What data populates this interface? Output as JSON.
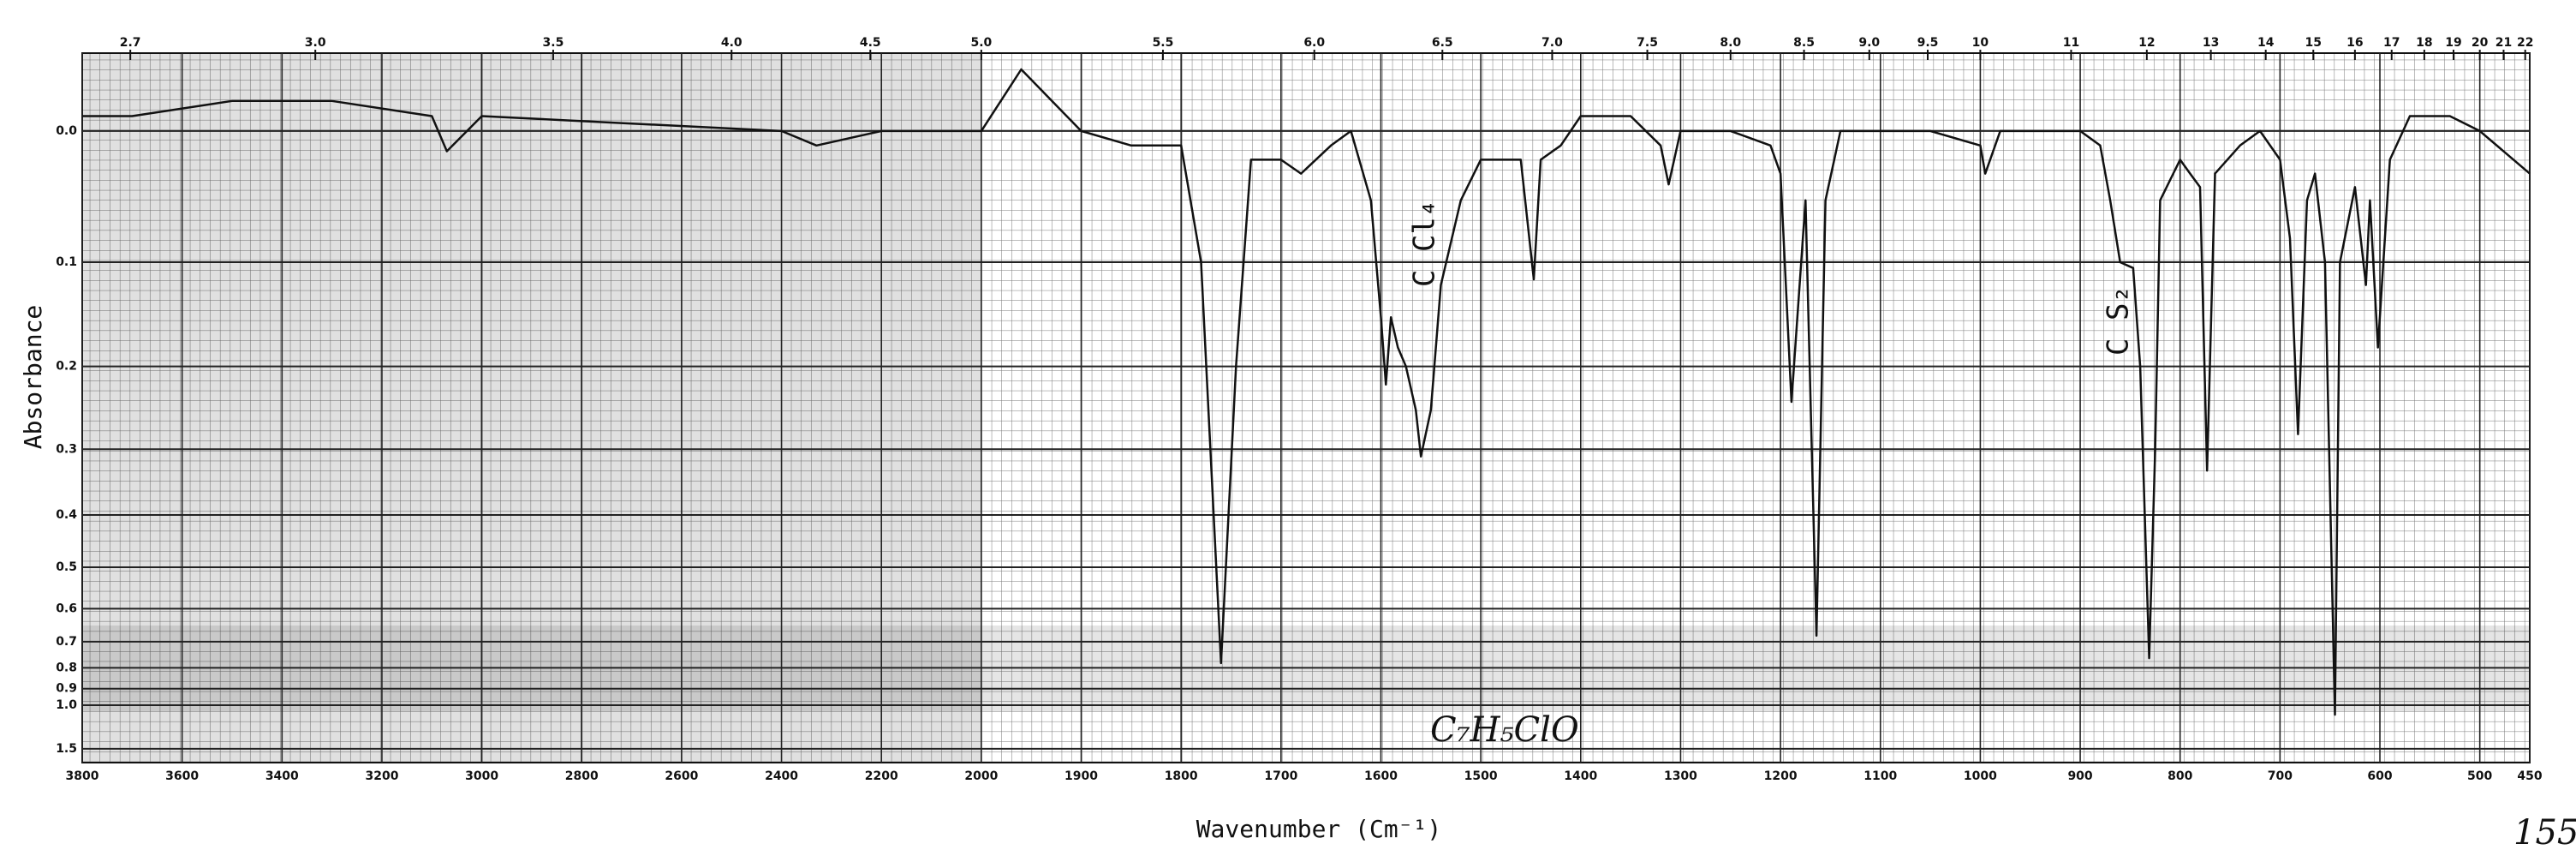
{
  "chart_data": {
    "type": "line",
    "x_label": "Wavenumber (Cm⁻¹)",
    "y_label": "Absorbance",
    "y_scale": "transmittance",
    "x_scale_break": 2000,
    "x_scale_ratio": 2,
    "color": "#111111",
    "grid": true,
    "xlim": [
      3800,
      450
    ],
    "ylim": [
      -0.05,
      2
    ],
    "xticks": [
      3800,
      3600,
      3400,
      3200,
      3000,
      2800,
      2600,
      2400,
      2200,
      2000,
      1900,
      1800,
      1700,
      1600,
      1500,
      1400,
      1300,
      1200,
      1100,
      1000,
      900,
      800,
      700,
      600,
      500,
      450
    ],
    "x2ticks": [
      2.7,
      {
        "value": 3,
        "label": "3.0"
      },
      3.5,
      {
        "value": 4,
        "label": "4.0"
      },
      4.5,
      {
        "value": 5,
        "label": "5.0"
      },
      5.5,
      {
        "value": 6,
        "label": "6.0"
      },
      6.5,
      {
        "value": 7,
        "label": "7.0"
      },
      7.5,
      {
        "value": 8,
        "label": "8.0"
      },
      8.5,
      {
        "value": 9,
        "label": "9.0"
      },
      9.5,
      10,
      11,
      12,
      13,
      14,
      15,
      16,
      17,
      18,
      19,
      20,
      21,
      22
    ],
    "yticks": [
      {
        "value": 0,
        "label": "0.0"
      },
      0.1,
      0.2,
      0.3,
      0.4,
      0.5,
      0.6,
      0.7,
      0.8,
      0.9,
      {
        "value": 1,
        "label": "1.0"
      },
      1.5
    ],
    "x": [
      3800,
      3700,
      3500,
      3300,
      3100,
      3070,
      3000,
      2400,
      2330,
      2200,
      2000,
      1960,
      1900,
      1850,
      1800,
      1780,
      1760,
      1745,
      1730,
      1700,
      1680,
      1650,
      1630,
      1610,
      1600,
      1595,
      1590,
      1583,
      1575,
      1565,
      1560,
      1550,
      1540,
      1520,
      1500,
      1480,
      1460,
      1447,
      1440,
      1420,
      1400,
      1350,
      1320,
      1312,
      1300,
      1250,
      1210,
      1200,
      1189,
      1175,
      1164,
      1155,
      1140,
      1100,
      1050,
      1000,
      995,
      980,
      950,
      900,
      880,
      870,
      860,
      847,
      840,
      831,
      825,
      820,
      800,
      790,
      780,
      773,
      765,
      740,
      720,
      700,
      690,
      682,
      673,
      665,
      655,
      645,
      640,
      625,
      614,
      610,
      602,
      590,
      570,
      530,
      500,
      450
    ],
    "values": [
      -0.01,
      -0.01,
      -0.02,
      -0.02,
      -0.01,
      0.014,
      -0.01,
      0.0,
      0.01,
      0.0,
      0.0,
      -0.04,
      0.0,
      0.01,
      0.01,
      0.1,
      0.78,
      0.2,
      0.02,
      0.02,
      0.03,
      0.01,
      0.0,
      0.05,
      0.15,
      0.22,
      0.15,
      0.18,
      0.2,
      0.25,
      0.31,
      0.25,
      0.12,
      0.05,
      0.02,
      0.02,
      0.02,
      0.115,
      0.02,
      0.01,
      -0.01,
      -0.01,
      0.01,
      0.038,
      0.0,
      0.0,
      0.01,
      0.03,
      0.24,
      0.05,
      0.68,
      0.05,
      0.0,
      0.0,
      0.0,
      0.01,
      0.03,
      0.0,
      0.0,
      0.0,
      0.01,
      0.05,
      0.1,
      0.105,
      0.2,
      0.76,
      0.3,
      0.05,
      0.02,
      0.03,
      0.04,
      0.33,
      0.03,
      0.01,
      0.0,
      0.02,
      0.08,
      0.28,
      0.05,
      0.03,
      0.1,
      1.07,
      0.1,
      0.04,
      0.12,
      0.05,
      0.18,
      0.02,
      -0.01,
      -0.01,
      0.0,
      0.03
    ],
    "annotations": [
      "C Cl₄",
      "C S₂",
      "C₇H₅ClO",
      "155"
    ]
  }
}
